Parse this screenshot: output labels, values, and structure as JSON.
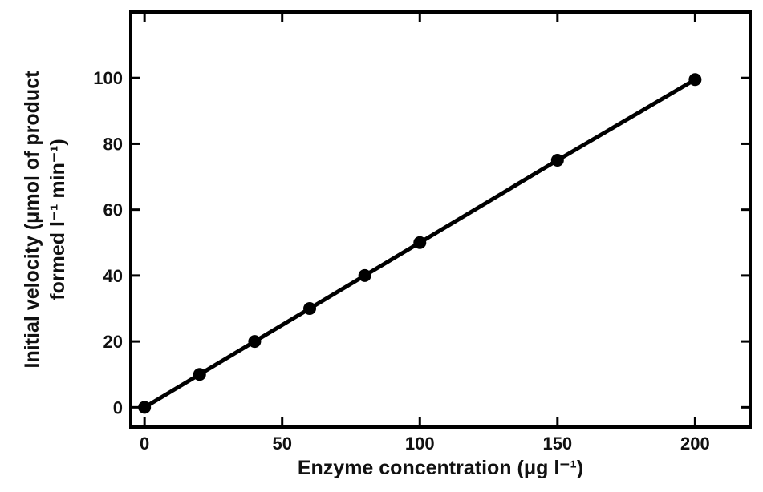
{
  "chart_data": {
    "type": "line",
    "xlabel": "Enzyme concentration (μg l⁻¹)",
    "ylabel": [
      "Initial velocity (μmol of product",
      "formed l⁻¹ min⁻¹)"
    ],
    "x": [
      0,
      20,
      40,
      60,
      80,
      100,
      150,
      200
    ],
    "series": [
      {
        "color": "#000000",
        "values": [
          0,
          10,
          20,
          30,
          40,
          50,
          75,
          99.5
        ]
      }
    ],
    "xlim": [
      -5,
      220
    ],
    "ylim": [
      -6,
      120
    ],
    "xticks": [
      0,
      50,
      100,
      150,
      200
    ],
    "yticks": [
      0,
      20,
      40,
      60,
      80,
      100
    ],
    "grid": false
  }
}
